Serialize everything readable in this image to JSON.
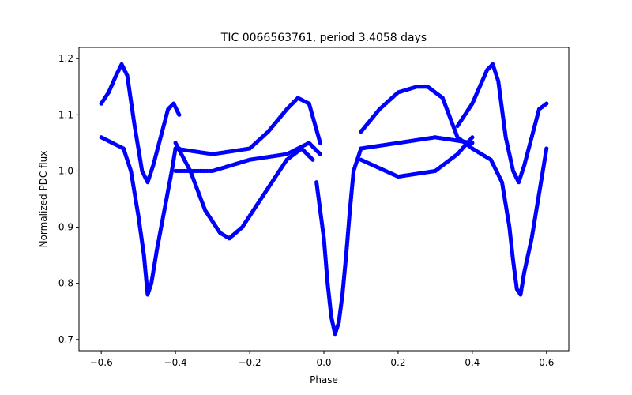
{
  "chart_data": {
    "type": "scatter",
    "title": "TIC 0066563761, period 3.4058 days",
    "xlabel": "Phase",
    "ylabel": "Normalized PDC flux",
    "xlim": [
      -0.66,
      0.66
    ],
    "ylim": [
      0.68,
      1.22
    ],
    "xticks": [
      -0.6,
      -0.4,
      -0.2,
      0.0,
      0.2,
      0.4,
      0.6
    ],
    "xtick_labels": [
      "−0.6",
      "−0.4",
      "−0.2",
      "0.0",
      "0.2",
      "0.4",
      "0.6"
    ],
    "yticks": [
      0.7,
      0.8,
      0.9,
      1.0,
      1.1,
      1.2
    ],
    "ytick_labels": [
      "0.7",
      "0.8",
      "0.9",
      "1.0",
      "1.1",
      "1.2"
    ],
    "grid": false,
    "marker_color": "#0000ff",
    "series": [
      {
        "x": [
          -0.6,
          -0.58,
          -0.56,
          -0.545,
          -0.53,
          -0.51,
          -0.49,
          -0.475,
          -0.46,
          -0.44,
          -0.42,
          -0.405,
          -0.39
        ],
        "y": [
          1.12,
          1.14,
          1.17,
          1.19,
          1.17,
          1.08,
          1.0,
          0.98,
          1.01,
          1.06,
          1.11,
          1.12,
          1.1
        ]
      },
      {
        "x": [
          -0.6,
          -0.57,
          -0.54,
          -0.52,
          -0.5,
          -0.485,
          -0.475,
          -0.465,
          -0.45,
          -0.43,
          -0.41,
          -0.4,
          -0.39
        ],
        "y": [
          1.06,
          1.05,
          1.04,
          1.0,
          0.92,
          0.85,
          0.78,
          0.8,
          0.86,
          0.93,
          1.0,
          1.04,
          1.04
        ]
      },
      {
        "x": [
          -0.4,
          -0.36,
          -0.32,
          -0.28,
          -0.255,
          -0.22,
          -0.18,
          -0.14,
          -0.1,
          -0.06,
          -0.03
        ],
        "y": [
          1.05,
          1.0,
          0.93,
          0.89,
          0.88,
          0.9,
          0.94,
          0.98,
          1.02,
          1.04,
          1.02
        ]
      },
      {
        "x": [
          -0.4,
          -0.3,
          -0.2,
          -0.15,
          -0.1,
          -0.07,
          -0.04,
          -0.01
        ],
        "y": [
          1.04,
          1.03,
          1.04,
          1.07,
          1.11,
          1.13,
          1.12,
          1.05
        ]
      },
      {
        "x": [
          -0.4,
          -0.3,
          -0.2,
          -0.1,
          -0.04,
          -0.01
        ],
        "y": [
          1.0,
          1.0,
          1.02,
          1.03,
          1.05,
          1.03
        ]
      },
      {
        "x": [
          -0.02,
          0.0,
          0.01,
          0.02,
          0.03,
          0.04,
          0.05,
          0.06,
          0.07,
          0.08,
          0.1
        ],
        "y": [
          0.98,
          0.88,
          0.8,
          0.74,
          0.71,
          0.73,
          0.78,
          0.85,
          0.93,
          1.0,
          1.04
        ]
      },
      {
        "x": [
          0.1,
          0.15,
          0.2,
          0.25,
          0.28,
          0.32,
          0.36,
          0.38,
          0.4
        ],
        "y": [
          1.07,
          1.11,
          1.14,
          1.15,
          1.15,
          1.13,
          1.06,
          1.05,
          1.04
        ]
      },
      {
        "x": [
          0.1,
          0.2,
          0.3,
          0.36,
          0.4
        ],
        "y": [
          1.02,
          0.99,
          1.0,
          1.03,
          1.06
        ]
      },
      {
        "x": [
          0.1,
          0.2,
          0.3,
          0.4
        ],
        "y": [
          1.04,
          1.05,
          1.06,
          1.05
        ]
      },
      {
        "x": [
          0.36,
          0.38,
          0.4,
          0.42,
          0.44,
          0.455,
          0.47,
          0.49,
          0.51,
          0.525,
          0.54,
          0.56,
          0.58,
          0.6
        ],
        "y": [
          1.08,
          1.1,
          1.12,
          1.15,
          1.18,
          1.19,
          1.16,
          1.06,
          1.0,
          0.98,
          1.01,
          1.06,
          1.11,
          1.12
        ]
      },
      {
        "x": [
          0.4,
          0.45,
          0.48,
          0.5,
          0.51,
          0.52,
          0.53,
          0.54,
          0.56,
          0.58,
          0.6
        ],
        "y": [
          1.04,
          1.02,
          0.98,
          0.9,
          0.84,
          0.79,
          0.78,
          0.82,
          0.88,
          0.96,
          1.04
        ]
      }
    ]
  }
}
